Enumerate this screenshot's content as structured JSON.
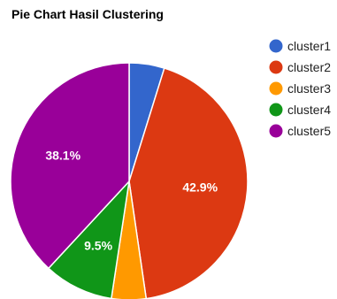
{
  "chart_data": {
    "type": "pie",
    "title": "Pie Chart Hasil Clustering",
    "legend_position": "right",
    "series": [
      {
        "name": "cluster1",
        "value": 4.8,
        "color": "#3366cc",
        "label": ""
      },
      {
        "name": "cluster2",
        "value": 42.9,
        "color": "#dc3912",
        "label": "42.9%"
      },
      {
        "name": "cluster3",
        "value": 4.7,
        "color": "#ff9900",
        "label": ""
      },
      {
        "name": "cluster4",
        "value": 9.5,
        "color": "#109618",
        "label": "9.5%"
      },
      {
        "name": "cluster5",
        "value": 38.1,
        "color": "#990099",
        "label": "38.1%"
      }
    ]
  }
}
